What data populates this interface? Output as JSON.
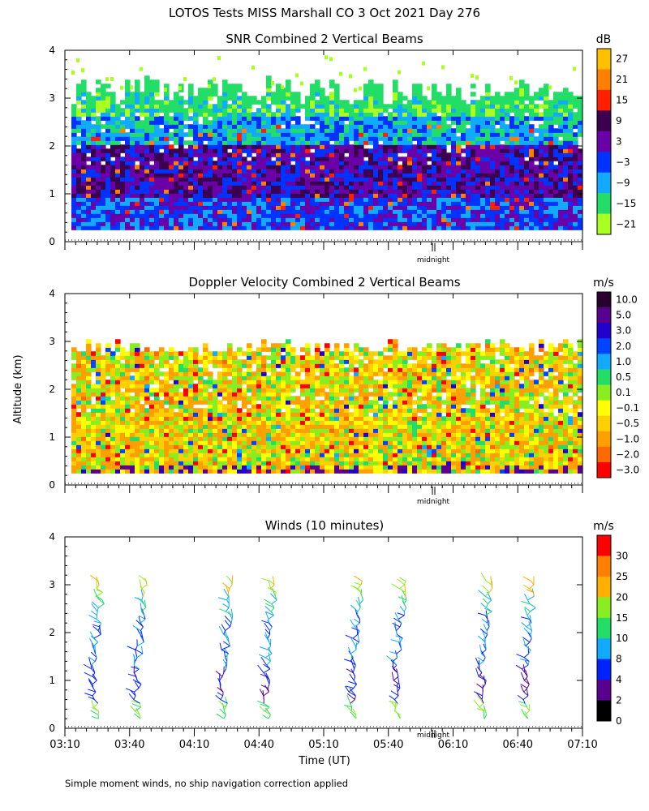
{
  "figure": {
    "title": "LOTOS Tests MISS Marshall CO    3 Oct 2021 Day 276",
    "y_axis_label": "Altitude (km)",
    "x_axis_label": "Time (UT)",
    "footnote": "Simple moment winds, no ship navigation correction applied",
    "midnight_label": "midnight"
  },
  "chart_data": [
    {
      "type": "heatmap",
      "title": "SNR Combined 2 Vertical Beams",
      "ylim": [
        0,
        4
      ],
      "yticks": [
        "0",
        "1",
        "2",
        "3",
        "4"
      ],
      "colorbar_unit": "dB",
      "colorbar_labels": [
        "27",
        "21",
        "15",
        "9",
        "3",
        "−3",
        "−9",
        "−15",
        "−21"
      ],
      "colorbar_colors": [
        "#ffc000",
        "#ff8000",
        "#ff2000",
        "#3c0050",
        "#6a00a8",
        "#0033ff",
        "#11aaff",
        "#22dd66",
        "#aaff22"
      ],
      "data_altitude_km": [
        0.25,
        3.1
      ],
      "dominant_by_altitude": [
        {
          "from_km": 0.25,
          "to_km": 0.9,
          "db": -3
        },
        {
          "from_km": 0.9,
          "to_km": 2.0,
          "db": 3
        },
        {
          "from_km": 2.0,
          "to_km": 2.6,
          "db": -9
        },
        {
          "from_km": 2.6,
          "to_km": 3.1,
          "db": -15
        }
      ]
    },
    {
      "type": "heatmap",
      "title": "Doppler Velocity Combined 2 Vertical Beams",
      "ylim": [
        0,
        4
      ],
      "yticks": [
        "0",
        "1",
        "2",
        "3",
        "4"
      ],
      "colorbar_unit": "m/s",
      "colorbar_labels": [
        "10.0",
        "5.0",
        "3.0",
        "2.0",
        "1.0",
        "0.5",
        "0.1",
        "−0.1",
        "−0.5",
        "−1.0",
        "−2.0",
        "−3.0"
      ],
      "colorbar_colors": [
        "#2a0030",
        "#5a0090",
        "#2200cc",
        "#0044ff",
        "#11aaff",
        "#22dd66",
        "#88ee22",
        "#ffff00",
        "#ffd000",
        "#ffa000",
        "#ff6a00",
        "#ff0000"
      ],
      "data_altitude_km": [
        0.25,
        3.0
      ],
      "dominant_velocity_m_s": -0.5
    },
    {
      "type": "scatter",
      "title": "Winds (10 minutes)",
      "ylim": [
        0,
        4
      ],
      "yticks": [
        "0",
        "1",
        "2",
        "3",
        "4"
      ],
      "xticks": [
        "03:10",
        "03:40",
        "04:10",
        "04:40",
        "05:10",
        "05:40",
        "06:10",
        "06:40",
        "07:10"
      ],
      "colorbar_unit": "m/s",
      "colorbar_labels": [
        "30",
        "25",
        "20",
        "15",
        "10",
        "8",
        "4",
        "2",
        "0"
      ],
      "colorbar_colors": [
        "#ff0000",
        "#ff8000",
        "#ffb000",
        "#88ee22",
        "#22dd66",
        "#11aaff",
        "#0022ff",
        "#5a0090",
        "#000000"
      ],
      "profile_times": [
        "03:25",
        "03:45",
        "04:25",
        "04:45",
        "05:25",
        "05:45",
        "06:25",
        "06:45"
      ],
      "speed_by_altitude": [
        {
          "from_km": 0.2,
          "to_km": 0.6,
          "speed_m_s": 15
        },
        {
          "from_km": 0.6,
          "to_km": 1.3,
          "speed_m_s": 4
        },
        {
          "from_km": 1.3,
          "to_km": 2.4,
          "speed_m_s": 8
        },
        {
          "from_km": 2.4,
          "to_km": 2.8,
          "speed_m_s": 10
        },
        {
          "from_km": 2.8,
          "to_km": 3.1,
          "speed_m_s": 20
        }
      ]
    }
  ]
}
